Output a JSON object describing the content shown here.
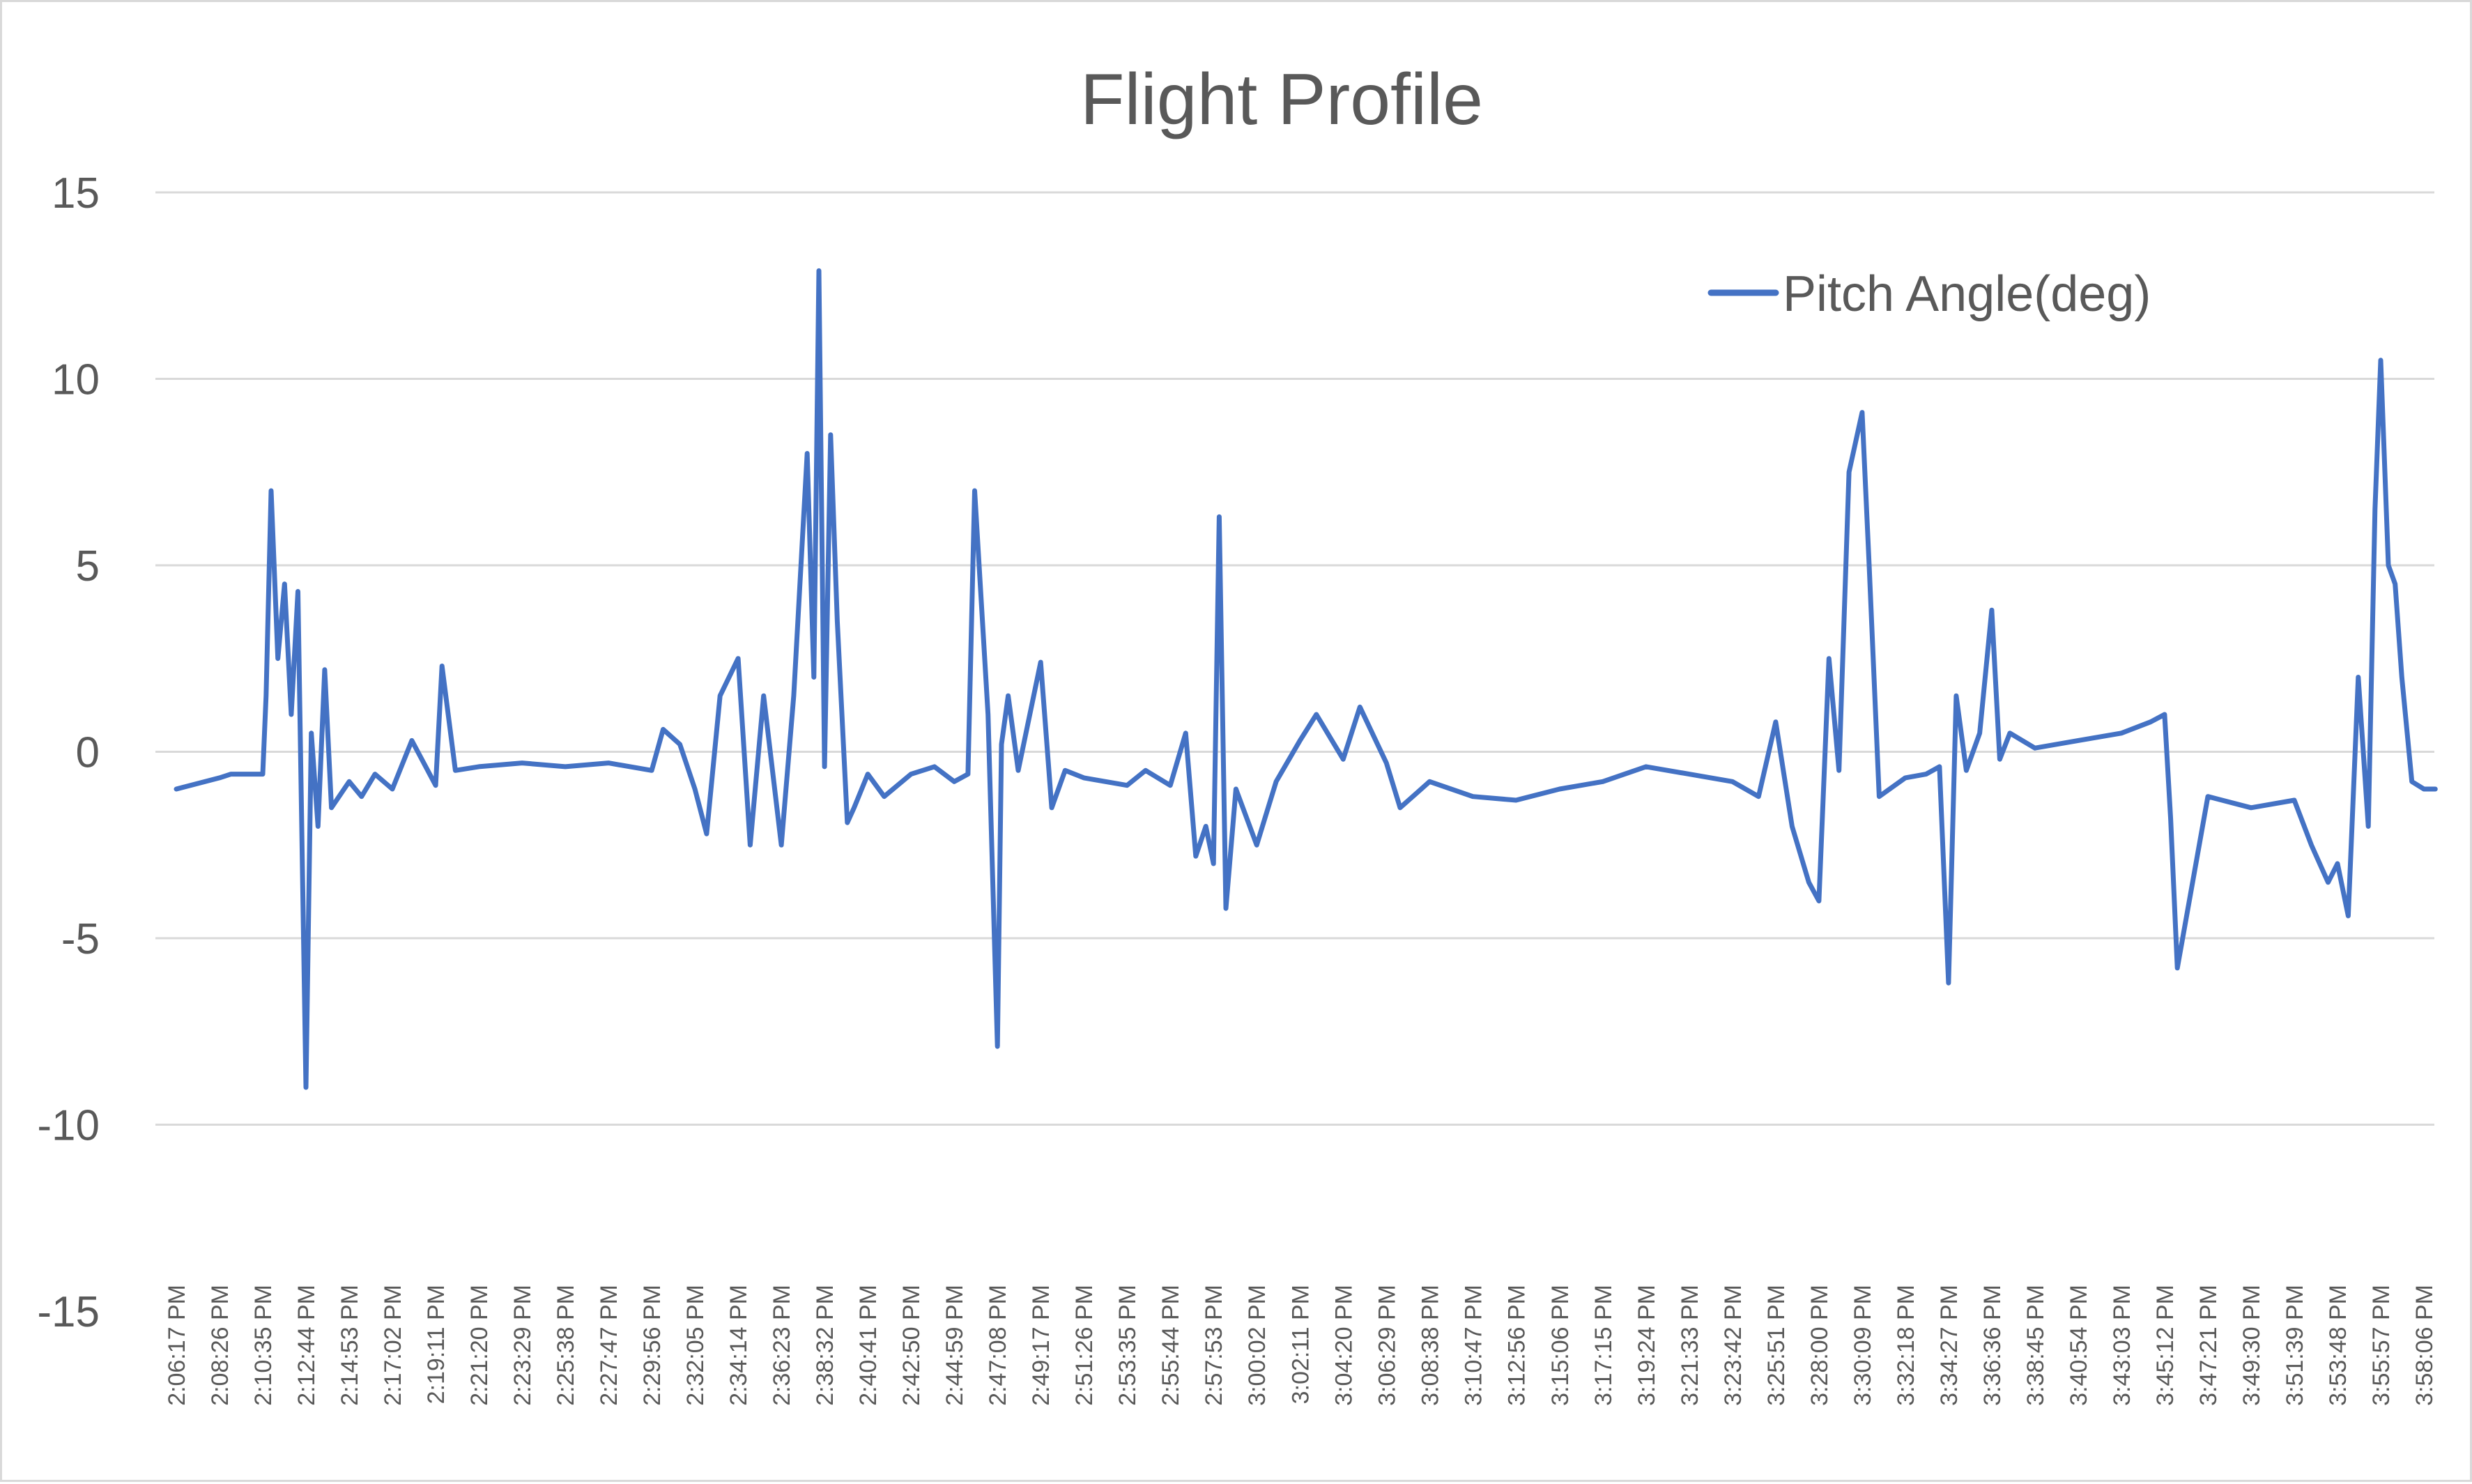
{
  "chart_data": {
    "type": "line",
    "title": "Flight Profile",
    "xlabel": "",
    "ylabel": "",
    "ylim": [
      -15,
      15
    ],
    "yticks": [
      15,
      10,
      5,
      0,
      -5,
      -10,
      -15
    ],
    "ytick_labels": [
      "15",
      "10",
      "5",
      "0",
      "-5",
      "-10",
      "-15"
    ],
    "grid": true,
    "legend_position": "top-right",
    "x_tick_labels": [
      "2:06:17 PM",
      "2:08:26 PM",
      "2:10:35 PM",
      "2:12:44 PM",
      "2:14:53 PM",
      "2:17:02 PM",
      "2:19:11 PM",
      "2:21:20 PM",
      "2:23:29 PM",
      "2:25:38 PM",
      "2:27:47 PM",
      "2:29:56 PM",
      "2:32:05 PM",
      "2:34:14 PM",
      "2:36:23 PM",
      "2:38:32 PM",
      "2:40:41 PM",
      "2:42:50 PM",
      "2:44:59 PM",
      "2:47:08 PM",
      "2:49:17 PM",
      "2:51:26 PM",
      "2:53:35 PM",
      "2:55:44 PM",
      "2:57:53 PM",
      "3:00:02 PM",
      "3:02:11 PM",
      "3:04:20 PM",
      "3:06:29 PM",
      "3:08:38 PM",
      "3:10:47 PM",
      "3:12:56 PM",
      "3:15:06 PM",
      "3:17:15 PM",
      "3:19:24 PM",
      "3:21:33 PM",
      "3:23:42 PM",
      "3:25:51 PM",
      "3:28:00 PM",
      "3:30:09 PM",
      "3:32:18 PM",
      "3:34:27 PM",
      "3:36:36 PM",
      "3:38:45 PM",
      "3:40:54 PM",
      "3:43:03 PM",
      "3:45:12 PM",
      "3:47:21 PM",
      "3:49:30 PM",
      "3:51:39 PM",
      "3:53:48 PM",
      "3:55:57 PM",
      "3:58:06 PM"
    ],
    "series": [
      {
        "name": "Pitch Angle(deg)",
        "color": "#4472c4",
        "x": [
          "2:06:17 PM",
          "2:08:26 PM",
          "2:09:00 PM",
          "2:10:35 PM",
          "2:10:45 PM",
          "2:11:00 PM",
          "2:11:20 PM",
          "2:11:40 PM",
          "2:12:00 PM",
          "2:12:20 PM",
          "2:12:44 PM",
          "2:13:00 PM",
          "2:13:20 PM",
          "2:13:40 PM",
          "2:14:00 PM",
          "2:14:53 PM",
          "2:15:30 PM",
          "2:16:10 PM",
          "2:17:02 PM",
          "2:18:00 PM",
          "2:19:11 PM",
          "2:19:30 PM",
          "2:20:10 PM",
          "2:21:20 PM",
          "2:23:29 PM",
          "2:25:38 PM",
          "2:27:47 PM",
          "2:29:56 PM",
          "2:30:30 PM",
          "2:31:20 PM",
          "2:32:05 PM",
          "2:32:40 PM",
          "2:33:20 PM",
          "2:34:14 PM",
          "2:34:50 PM",
          "2:35:30 PM",
          "2:36:23 PM",
          "2:37:00 PM",
          "2:37:40 PM",
          "2:38:00 PM",
          "2:38:15 PM",
          "2:38:32 PM",
          "2:38:50 PM",
          "2:39:10 PM",
          "2:39:40 PM",
          "2:40:00 PM",
          "2:40:41 PM",
          "2:41:30 PM",
          "2:42:50 PM",
          "2:44:00 PM",
          "2:44:59 PM",
          "2:45:40 PM",
          "2:46:00 PM",
          "2:46:20 PM",
          "2:46:40 PM",
          "2:47:08 PM",
          "2:47:20 PM",
          "2:47:40 PM",
          "2:48:10 PM",
          "2:49:17 PM",
          "2:49:50 PM",
          "2:50:30 PM",
          "2:51:26 PM",
          "2:53:35 PM",
          "2:54:30 PM",
          "2:55:44 PM",
          "2:56:30 PM",
          "2:57:00 PM",
          "2:57:30 PM",
          "2:57:53 PM",
          "2:58:10 PM",
          "2:58:30 PM",
          "2:59:00 PM",
          "3:00:02 PM",
          "3:01:00 PM",
          "3:02:11 PM",
          "3:03:00 PM",
          "3:04:20 PM",
          "3:05:10 PM",
          "3:06:29 PM",
          "3:07:10 PM",
          "3:08:38 PM",
          "3:10:47 PM",
          "3:12:56 PM",
          "3:15:06 PM",
          "3:17:15 PM",
          "3:19:24 PM",
          "3:21:33 PM",
          "3:23:42 PM",
          "3:25:00 PM",
          "3:25:51 PM",
          "3:26:40 PM",
          "3:27:30 PM",
          "3:28:00 PM",
          "3:28:30 PM",
          "3:29:00 PM",
          "3:29:30 PM",
          "3:30:09 PM",
          "3:30:30 PM",
          "3:31:00 PM",
          "3:32:18 PM",
          "3:33:20 PM",
          "3:34:00 PM",
          "3:34:27 PM",
          "3:34:50 PM",
          "3:35:20 PM",
          "3:36:00 PM",
          "3:36:36 PM",
          "3:37:00 PM",
          "3:37:30 PM",
          "3:38:45 PM",
          "3:40:54 PM",
          "3:43:03 PM",
          "3:44:30 PM",
          "3:45:12 PM",
          "3:45:30 PM",
          "3:45:50 PM",
          "3:47:21 PM",
          "3:49:30 PM",
          "3:51:39 PM",
          "3:52:30 PM",
          "3:53:20 PM",
          "3:53:48 PM",
          "3:54:20 PM",
          "3:54:50 PM",
          "3:55:20 PM",
          "3:55:40 PM",
          "3:55:57 PM",
          "3:56:20 PM",
          "3:56:40 PM",
          "3:57:00 PM",
          "3:57:30 PM",
          "3:58:06 PM",
          "3:58:40 PM"
        ],
        "y": [
          -1.0,
          -0.7,
          -0.6,
          -0.6,
          1.5,
          7.0,
          2.5,
          4.5,
          1.0,
          4.3,
          -9.0,
          0.5,
          -2.0,
          2.2,
          -1.5,
          -0.8,
          -1.2,
          -0.6,
          -1.0,
          0.3,
          -0.9,
          2.3,
          -0.5,
          -0.4,
          -0.3,
          -0.4,
          -0.3,
          -0.5,
          0.6,
          0.2,
          -1.0,
          -2.2,
          1.5,
          2.5,
          -2.5,
          1.5,
          -2.5,
          1.5,
          8.0,
          2.0,
          12.9,
          -0.4,
          8.5,
          3.5,
          -1.9,
          -1.5,
          -0.6,
          -1.2,
          -0.6,
          -0.4,
          -0.8,
          -0.6,
          7.0,
          4.0,
          1.0,
          -7.9,
          0.2,
          1.5,
          -0.5,
          2.4,
          -1.5,
          -0.5,
          -0.7,
          -0.9,
          -0.5,
          -0.9,
          0.5,
          -2.8,
          -2.0,
          -3.0,
          6.3,
          -4.2,
          -1.0,
          -2.5,
          -0.8,
          0.3,
          1.0,
          -0.2,
          1.2,
          -0.3,
          -1.5,
          -0.8,
          -1.2,
          -1.3,
          -1.0,
          -0.8,
          -0.4,
          -0.6,
          -0.8,
          -1.2,
          0.8,
          -2.0,
          -3.5,
          -4.0,
          2.5,
          -0.5,
          7.5,
          9.1,
          5.0,
          -1.2,
          -0.7,
          -0.6,
          -0.4,
          -6.2,
          1.5,
          -0.5,
          0.5,
          3.8,
          -0.2,
          0.5,
          0.1,
          0.3,
          0.5,
          0.8,
          1.0,
          -1.8,
          -5.8,
          -1.2,
          -1.5,
          -1.3,
          -2.5,
          -3.5,
          -3.0,
          -4.4,
          2.0,
          -2.0,
          6.5,
          10.5,
          5.0,
          4.5,
          2.0,
          -0.8,
          -1.0,
          -1.0
        ]
      }
    ]
  }
}
